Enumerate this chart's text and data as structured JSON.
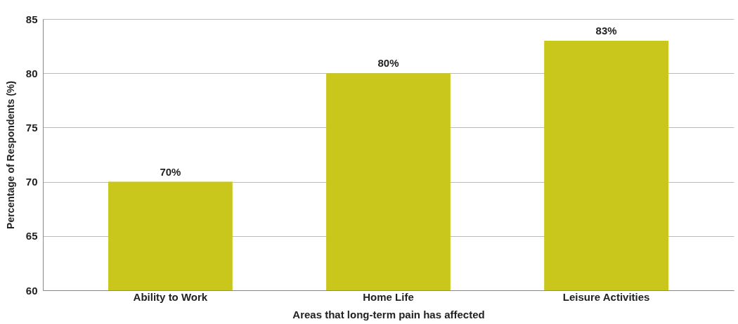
{
  "chart_data": {
    "type": "bar",
    "xlabel": "Areas that long-term pain has affected",
    "ylabel": "Percentage of Respondents (%)",
    "categories": [
      "Ability to Work",
      "Home Life",
      "Leisure Activities"
    ],
    "values": [
      70,
      80,
      83
    ],
    "value_labels": [
      "70%",
      "80%",
      "83%"
    ],
    "color": "#c9c61c",
    "ylim": [
      60,
      85
    ],
    "yticks": [
      60,
      65,
      70,
      75,
      80,
      85
    ],
    "grid": "y"
  }
}
